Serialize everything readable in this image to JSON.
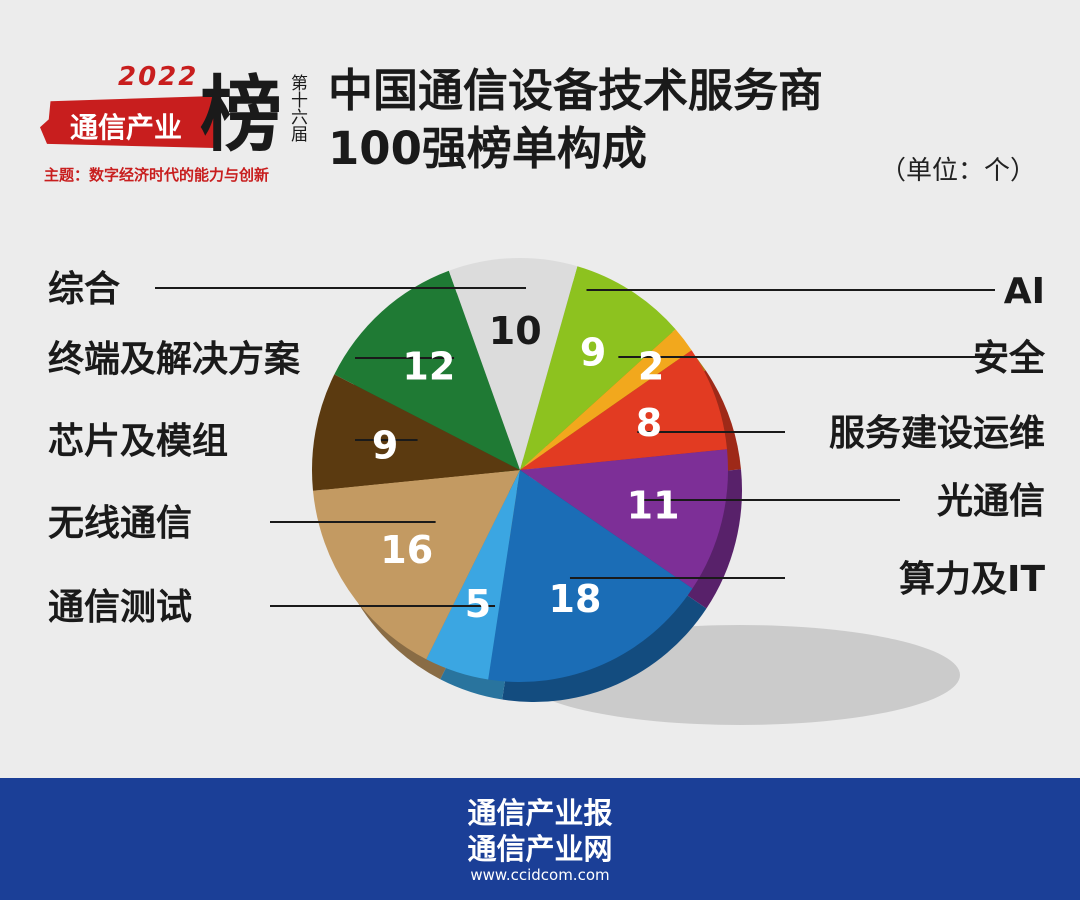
{
  "logo": {
    "year": "2022",
    "banner": "通信产业",
    "big_char": "榜",
    "edition": "第十六届",
    "theme": "主题：数字经济时代的能力与创新"
  },
  "header": {
    "title_line1": "中国通信设备技术服务商",
    "title_line2": "100强榜单构成",
    "unit": "（单位：个）"
  },
  "chart_data": {
    "type": "pie",
    "title": "中国通信设备技术服务商100强榜单构成",
    "unit": "个",
    "total": 100,
    "slices": [
      {
        "label": "AI",
        "value": 9,
        "color": "#8dc21f",
        "side": "right"
      },
      {
        "label": "安全",
        "value": 2,
        "color": "#f2a81d",
        "side": "right"
      },
      {
        "label": "服务建设运维",
        "value": 8,
        "color": "#e23b22",
        "side": "right"
      },
      {
        "label": "光通信",
        "value": 11,
        "color": "#7d2f97",
        "side": "right"
      },
      {
        "label": "算力及IT",
        "value": 18,
        "color": "#1b6db6",
        "side": "right"
      },
      {
        "label": "通信测试",
        "value": 5,
        "color": "#3ba6e2",
        "side": "left"
      },
      {
        "label": "无线通信",
        "value": 16,
        "color": "#c39a62",
        "side": "left"
      },
      {
        "label": "芯片及模组",
        "value": 9,
        "color": "#5b3a10",
        "side": "left"
      },
      {
        "label": "终端及解决方案",
        "value": 12,
        "color": "#1f7a34",
        "side": "left"
      },
      {
        "label": "综合",
        "value": 10,
        "color": "#dcdcdc",
        "side": "left"
      }
    ]
  },
  "footer": {
    "line1": "通信产业报",
    "line2": "通信产业网",
    "url": "www.ccidcom.com"
  }
}
